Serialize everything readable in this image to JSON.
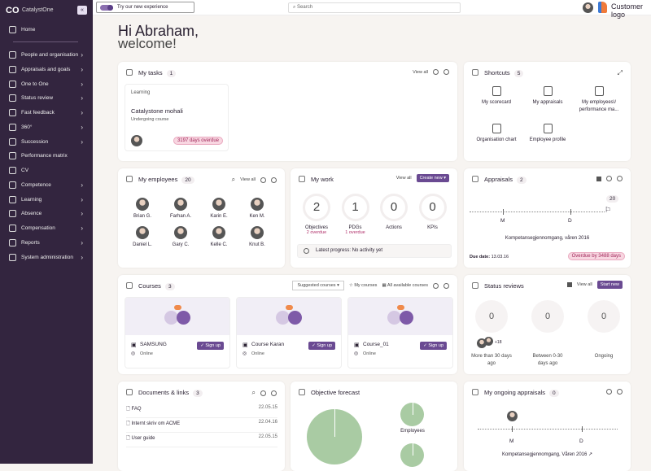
{
  "brand": "CatalystOne",
  "logo": "CO",
  "sidebar": {
    "collapse": "«",
    "items": [
      {
        "label": "Home"
      },
      {
        "label": "People and organisation"
      },
      {
        "label": "Appraisals and goals"
      },
      {
        "label": "One to One"
      },
      {
        "label": "Status review"
      },
      {
        "label": "Fast feedback"
      },
      {
        "label": "360°"
      },
      {
        "label": "Succession"
      },
      {
        "label": "Performance matrix"
      },
      {
        "label": "CV"
      },
      {
        "label": "Competence"
      },
      {
        "label": "Learning"
      },
      {
        "label": "Absence"
      },
      {
        "label": "Compensation"
      },
      {
        "label": "Reports"
      },
      {
        "label": "System administration"
      }
    ]
  },
  "topbar": {
    "try": "Try our new experience",
    "search_placeholder": "Search",
    "customer": "Customer logo"
  },
  "greeting": {
    "hi": "Hi Abraham,",
    "welcome": "welcome!"
  },
  "tasks": {
    "title": "My tasks",
    "count": "1",
    "view_all": "View all",
    "task": {
      "type": "Learning",
      "name": "Catalystone mohali",
      "status": "Undergoing course",
      "overdue": "3197 days overdue"
    }
  },
  "shortcuts": {
    "title": "Shortcuts",
    "count": "5",
    "items": [
      "My scorecard",
      "My appraisals",
      "My employees\\/ performance ma...",
      "Organisation chart",
      "Employee profile"
    ]
  },
  "employees": {
    "title": "My employees",
    "count": "20",
    "view_all": "View all",
    "people": [
      "Brian G.",
      "Farhan A.",
      "Karin E.",
      "Ken M.",
      "Daniel L.",
      "Gary C.",
      "Kelle C.",
      "Knut B."
    ]
  },
  "work": {
    "title": "My work",
    "view_all": "View all",
    "create": "Create new ▾",
    "stats": [
      {
        "value": "2",
        "label": "Objectives",
        "overdue": "2 overdue"
      },
      {
        "value": "1",
        "label": "PDGs",
        "overdue": "1 overdue"
      },
      {
        "value": "0",
        "label": "Actions",
        "overdue": ""
      },
      {
        "value": "0",
        "label": "KPIs",
        "overdue": ""
      }
    ],
    "progress": "Latest progress: No activity yet"
  },
  "appraisals": {
    "title": "Appraisals",
    "count": "2",
    "flag_count": "20",
    "m": "M",
    "d": "D",
    "name": "Kompetansegjennomgang, våren 2016",
    "due_label": "Due date:",
    "due": "13.03.16",
    "overdue": "Overdue by 3488 days"
  },
  "courses": {
    "title": "Courses",
    "count": "3",
    "filter": "Suggested courses ▾",
    "my": "My courses",
    "all": "All available courses",
    "items": [
      {
        "name": "SAMSUNG",
        "loc": "Online"
      },
      {
        "name": "Course Karan",
        "loc": "Online"
      },
      {
        "name": "Course_01",
        "loc": "Online"
      }
    ],
    "signup": "Sign up"
  },
  "status": {
    "title": "Status reviews",
    "view_all": "View all",
    "start": "Start new",
    "more": "+18",
    "groups": [
      {
        "value": "0",
        "label": "More than 30 days ago"
      },
      {
        "value": "0",
        "label": "Between 0-30 days ago"
      },
      {
        "value": "0",
        "label": "Ongoing"
      }
    ]
  },
  "docs": {
    "title": "Documents & links",
    "count": "3",
    "items": [
      {
        "name": "FAQ",
        "date": "22.05.15"
      },
      {
        "name": "Internt skriv om ACME",
        "date": "22.04.16"
      },
      {
        "name": "User guide",
        "date": "22.05.15"
      }
    ]
  },
  "forecast": {
    "title": "Objective forecast",
    "employees": "Employees"
  },
  "ongoing": {
    "title": "My ongoing appraisals",
    "count": "0",
    "m": "M",
    "d": "D",
    "name": "Kompetansegjennomgang, Våren 2016 ↗"
  }
}
